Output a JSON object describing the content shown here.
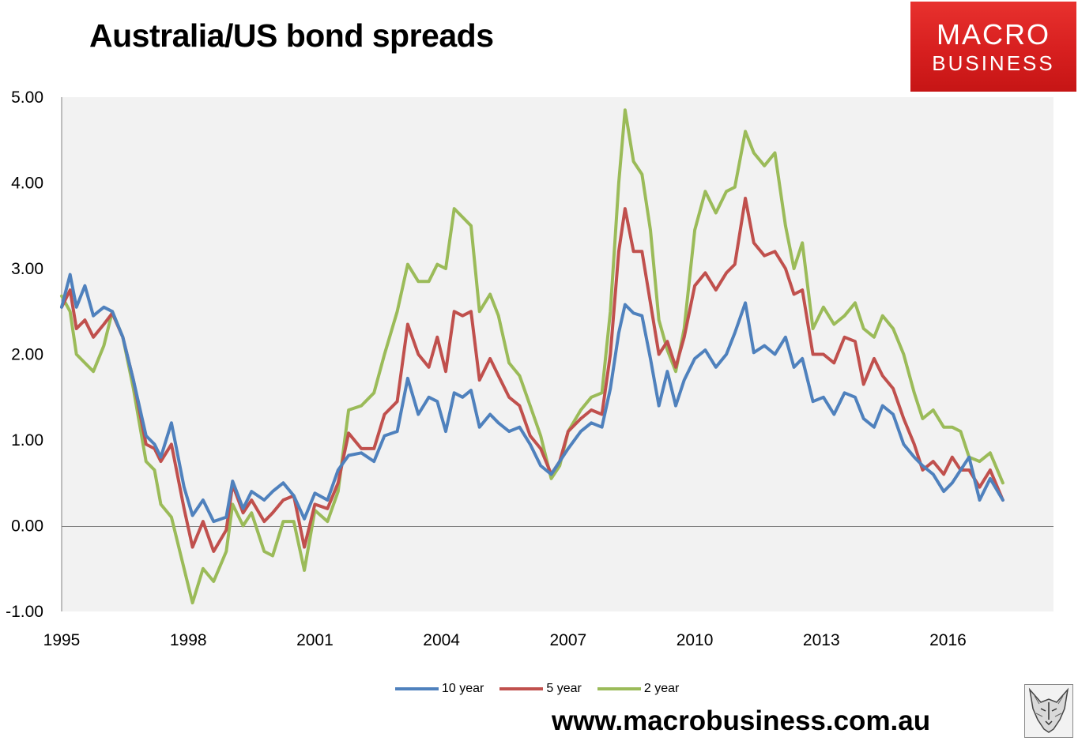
{
  "title": "Australia/US bond spreads",
  "logo": {
    "line1": "MACRO",
    "line2": "BUSINESS"
  },
  "website": "www.macrobusiness.com.au",
  "badge_icon": "wolf-head-icon",
  "chart_data": {
    "type": "line",
    "title": "Australia/US bond spreads",
    "xlabel": "",
    "ylabel": "",
    "xlim": [
      1995,
      2018.5
    ],
    "ylim": [
      -1,
      5
    ],
    "x_ticks": [
      "1995",
      "1998",
      "2001",
      "2004",
      "2007",
      "2010",
      "2013",
      "2016"
    ],
    "y_ticks": [
      "5.00",
      "4.00",
      "3.00",
      "2.00",
      "1.00",
      "0.00",
      "-1.00"
    ],
    "grid": false,
    "legend_position": "bottom",
    "series": [
      {
        "name": "10 year",
        "color": "#4f81bd",
        "x": [
          1995.0,
          1995.2,
          1995.35,
          1995.55,
          1995.75,
          1996.0,
          1996.2,
          1996.45,
          1996.7,
          1997.0,
          1997.2,
          1997.35,
          1997.6,
          1997.9,
          1998.1,
          1998.35,
          1998.6,
          1998.9,
          1999.05,
          1999.3,
          1999.5,
          1999.8,
          2000.0,
          2000.25,
          2000.5,
          2000.75,
          2001.0,
          2001.3,
          2001.55,
          2001.8,
          2002.1,
          2002.4,
          2002.65,
          2002.95,
          2003.2,
          2003.45,
          2003.7,
          2003.9,
          2004.1,
          2004.3,
          2004.5,
          2004.7,
          2004.9,
          2005.15,
          2005.35,
          2005.6,
          2005.85,
          2006.1,
          2006.35,
          2006.6,
          2006.8,
          2007.0,
          2007.3,
          2007.55,
          2007.8,
          2008.0,
          2008.2,
          2008.35,
          2008.55,
          2008.75,
          2008.95,
          2009.15,
          2009.35,
          2009.55,
          2009.75,
          2010.0,
          2010.25,
          2010.5,
          2010.75,
          2010.95,
          2011.2,
          2011.4,
          2011.65,
          2011.9,
          2012.15,
          2012.35,
          2012.55,
          2012.8,
          2013.05,
          2013.3,
          2013.55,
          2013.8,
          2014.0,
          2014.25,
          2014.45,
          2014.7,
          2014.95,
          2015.2,
          2015.4,
          2015.65,
          2015.9,
          2016.1,
          2016.3,
          2016.5,
          2016.75,
          2017.0,
          2017.3
        ],
        "values": [
          2.55,
          2.93,
          2.55,
          2.8,
          2.45,
          2.55,
          2.5,
          2.2,
          1.7,
          1.05,
          0.95,
          0.8,
          1.2,
          0.45,
          0.12,
          0.3,
          0.05,
          0.1,
          0.52,
          0.2,
          0.4,
          0.3,
          0.4,
          0.5,
          0.35,
          0.08,
          0.38,
          0.3,
          0.65,
          0.82,
          0.85,
          0.75,
          1.05,
          1.1,
          1.72,
          1.3,
          1.5,
          1.45,
          1.1,
          1.55,
          1.5,
          1.58,
          1.15,
          1.3,
          1.2,
          1.1,
          1.15,
          0.95,
          0.7,
          0.6,
          0.75,
          0.9,
          1.1,
          1.2,
          1.15,
          1.6,
          2.25,
          2.58,
          2.48,
          2.45,
          1.95,
          1.4,
          1.8,
          1.4,
          1.7,
          1.95,
          2.05,
          1.85,
          2.0,
          2.25,
          2.6,
          2.02,
          2.1,
          2.0,
          2.2,
          1.85,
          1.95,
          1.45,
          1.5,
          1.3,
          1.55,
          1.5,
          1.25,
          1.15,
          1.4,
          1.3,
          0.95,
          0.8,
          0.7,
          0.6,
          0.4,
          0.5,
          0.65,
          0.8,
          0.3,
          0.55,
          0.3
        ]
      },
      {
        "name": "5 year",
        "color": "#c0504d",
        "x": [
          1995.0,
          1995.2,
          1995.35,
          1995.55,
          1995.75,
          1996.0,
          1996.2,
          1996.45,
          1996.7,
          1997.0,
          1997.2,
          1997.35,
          1997.6,
          1997.9,
          1998.1,
          1998.35,
          1998.6,
          1998.9,
          1999.05,
          1999.3,
          1999.5,
          1999.8,
          2000.0,
          2000.25,
          2000.5,
          2000.75,
          2001.0,
          2001.3,
          2001.55,
          2001.8,
          2002.1,
          2002.4,
          2002.65,
          2002.95,
          2003.2,
          2003.45,
          2003.7,
          2003.9,
          2004.1,
          2004.3,
          2004.5,
          2004.7,
          2004.9,
          2005.15,
          2005.35,
          2005.6,
          2005.85,
          2006.1,
          2006.35,
          2006.6,
          2006.8,
          2007.0,
          2007.3,
          2007.55,
          2007.8,
          2008.0,
          2008.2,
          2008.35,
          2008.55,
          2008.75,
          2008.95,
          2009.15,
          2009.35,
          2009.55,
          2009.75,
          2010.0,
          2010.25,
          2010.5,
          2010.75,
          2010.95,
          2011.2,
          2011.4,
          2011.65,
          2011.9,
          2012.15,
          2012.35,
          2012.55,
          2012.8,
          2013.05,
          2013.3,
          2013.55,
          2013.8,
          2014.0,
          2014.25,
          2014.45,
          2014.7,
          2014.95,
          2015.2,
          2015.4,
          2015.65,
          2015.9,
          2016.1,
          2016.3,
          2016.5,
          2016.75,
          2017.0,
          2017.3
        ],
        "values": [
          2.55,
          2.75,
          2.3,
          2.4,
          2.2,
          2.35,
          2.48,
          2.2,
          1.7,
          0.95,
          0.9,
          0.75,
          0.95,
          0.2,
          -0.25,
          0.05,
          -0.3,
          -0.05,
          0.48,
          0.15,
          0.3,
          0.05,
          0.15,
          0.3,
          0.35,
          -0.25,
          0.25,
          0.2,
          0.5,
          1.08,
          0.9,
          0.9,
          1.3,
          1.45,
          2.35,
          2.0,
          1.85,
          2.2,
          1.8,
          2.5,
          2.45,
          2.5,
          1.7,
          1.95,
          1.75,
          1.5,
          1.4,
          1.05,
          0.9,
          0.6,
          0.75,
          1.1,
          1.25,
          1.35,
          1.3,
          2.0,
          3.2,
          3.7,
          3.2,
          3.2,
          2.6,
          2.0,
          2.15,
          1.85,
          2.2,
          2.8,
          2.95,
          2.75,
          2.95,
          3.05,
          3.82,
          3.3,
          3.15,
          3.2,
          3.0,
          2.7,
          2.75,
          2.0,
          2.0,
          1.9,
          2.2,
          2.15,
          1.65,
          1.95,
          1.75,
          1.6,
          1.25,
          0.95,
          0.65,
          0.75,
          0.6,
          0.8,
          0.65,
          0.65,
          0.45,
          0.65,
          0.3
        ]
      },
      {
        "name": "2 year",
        "color": "#9bbb59",
        "x": [
          1995.0,
          1995.2,
          1995.35,
          1995.55,
          1995.75,
          1996.0,
          1996.2,
          1996.45,
          1996.7,
          1997.0,
          1997.2,
          1997.35,
          1997.6,
          1997.9,
          1998.1,
          1998.35,
          1998.6,
          1998.9,
          1999.05,
          1999.3,
          1999.5,
          1999.8,
          2000.0,
          2000.25,
          2000.5,
          2000.75,
          2001.0,
          2001.3,
          2001.55,
          2001.8,
          2002.1,
          2002.4,
          2002.65,
          2002.95,
          2003.2,
          2003.45,
          2003.7,
          2003.9,
          2004.1,
          2004.3,
          2004.5,
          2004.7,
          2004.9,
          2005.15,
          2005.35,
          2005.6,
          2005.85,
          2006.1,
          2006.35,
          2006.6,
          2006.8,
          2007.0,
          2007.3,
          2007.55,
          2007.8,
          2008.0,
          2008.2,
          2008.35,
          2008.55,
          2008.75,
          2008.95,
          2009.15,
          2009.35,
          2009.55,
          2009.75,
          2010.0,
          2010.25,
          2010.5,
          2010.75,
          2010.95,
          2011.2,
          2011.4,
          2011.65,
          2011.9,
          2012.15,
          2012.35,
          2012.55,
          2012.8,
          2013.05,
          2013.3,
          2013.55,
          2013.8,
          2014.0,
          2014.25,
          2014.45,
          2014.7,
          2014.95,
          2015.2,
          2015.4,
          2015.65,
          2015.9,
          2016.1,
          2016.3,
          2016.5,
          2016.75,
          2017.0,
          2017.3
        ],
        "values": [
          2.68,
          2.5,
          2.0,
          1.9,
          1.8,
          2.1,
          2.5,
          2.2,
          1.6,
          0.75,
          0.65,
          0.25,
          0.1,
          -0.5,
          -0.9,
          -0.5,
          -0.65,
          -0.3,
          0.25,
          0.0,
          0.15,
          -0.3,
          -0.35,
          0.05,
          0.05,
          -0.52,
          0.18,
          0.05,
          0.4,
          1.35,
          1.4,
          1.55,
          2.0,
          2.5,
          3.05,
          2.85,
          2.85,
          3.05,
          3.0,
          3.7,
          3.6,
          3.5,
          2.5,
          2.7,
          2.45,
          1.9,
          1.75,
          1.4,
          1.05,
          0.55,
          0.7,
          1.1,
          1.35,
          1.5,
          1.55,
          2.5,
          4.0,
          4.85,
          4.25,
          4.1,
          3.45,
          2.4,
          2.05,
          1.8,
          2.3,
          3.45,
          3.9,
          3.65,
          3.9,
          3.95,
          4.6,
          4.35,
          4.2,
          4.35,
          3.5,
          3.0,
          3.3,
          2.3,
          2.55,
          2.35,
          2.45,
          2.6,
          2.3,
          2.2,
          2.45,
          2.3,
          2.0,
          1.55,
          1.25,
          1.35,
          1.15,
          1.15,
          1.1,
          0.8,
          0.75,
          0.85,
          0.5
        ]
      }
    ]
  }
}
